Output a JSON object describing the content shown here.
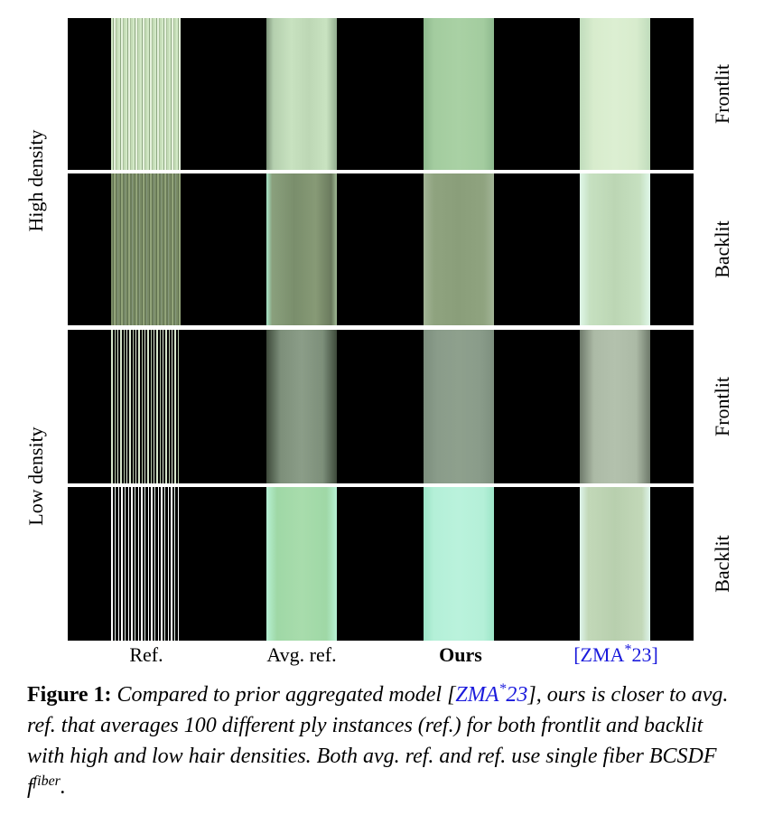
{
  "columns": [
    "Ref.",
    "Avg. ref.",
    "Ours",
    "[ZMA*23]"
  ],
  "column_citation_parts": {
    "open": "[",
    "cite": "ZMA",
    "sup": "*",
    "year": "23",
    "close": "]"
  },
  "rows_right": [
    "Frontlit",
    "Backlit",
    "Frontlit",
    "Backlit"
  ],
  "groups_left": [
    "High density",
    "Low density"
  ],
  "caption": {
    "label": "Figure 1:",
    "text_before_cite": " Compared to prior aggregated model [",
    "cite": "ZMA",
    "cite_sup": "*",
    "cite_year": "23",
    "text_after_cite": "], ours is closer to avg. ref. that averages 100 different ply instances (ref.) for both frontlit and backlit with high and low hair densities. Both avg. ref. and ref. use single fiber BCSDF ",
    "symbol": "f",
    "symbol_sup": "fiber",
    "end": "."
  },
  "colors": {
    "cite": "#1a1adc",
    "hd_front_ours": "#a3cc9f",
    "hd_back_ours": "#8fa37f",
    "ld_front_ours": "#8a9c8a",
    "ld_back_ours": "#b4f0d8",
    "hd_front_zma": "#d8eccd",
    "hd_back_zma": "#c6e0c0",
    "ld_front_zma": "#acbaa6",
    "ld_back_zma": "#c2d8b8"
  }
}
